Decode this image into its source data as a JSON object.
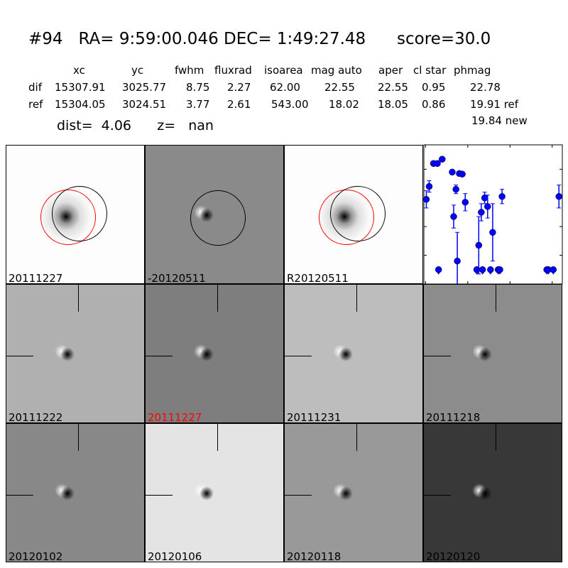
{
  "title": "#94   RA= 9:59:00.046 DEC= 1:49:27.48      score=30.0",
  "table": {
    "headers": [
      "xc",
      "yc",
      "fwhm",
      "fluxrad",
      "isoarea",
      "mag auto",
      "aper",
      "cl star",
      "phmag"
    ],
    "rows": [
      {
        "label": "dif",
        "values": [
          "15307.91",
          "3025.77",
          "8.75",
          "2.27",
          "62.00",
          "22.55",
          "22.55",
          "0.95",
          "22.78"
        ]
      },
      {
        "label": "ref",
        "values": [
          "15304.05",
          "3024.51",
          "3.77",
          "2.61",
          "543.00",
          "18.02",
          "18.05",
          "0.86",
          "19.91 ref"
        ]
      }
    ],
    "extra": "19.84 new"
  },
  "dist_text": "dist=  4.06      z=   nan",
  "stamps": [
    {
      "label": "20111227",
      "label_color": "#000000"
    },
    {
      "label": "-20120511",
      "label_color": "#000000"
    },
    {
      "label": "R20120511",
      "label_color": "#000000"
    },
    {
      "label": "20111218",
      "label_color": "#000000"
    },
    {
      "label": "20111222",
      "label_color": "#000000"
    },
    {
      "label": "20111227",
      "label_color": "#ff0000"
    },
    {
      "label": "20111231",
      "label_color": "#000000"
    },
    {
      "label": "20120102",
      "label_color": "#000000"
    },
    {
      "label": "20120106",
      "label_color": "#000000"
    },
    {
      "label": "20120118",
      "label_color": "#000000"
    },
    {
      "label": "20120120",
      "label_color": "#000000"
    }
  ],
  "chart_data": {
    "type": "scatter",
    "xlim": [
      -2,
      162
    ],
    "ylim": [
      26,
      21.15
    ],
    "y_inverted": true,
    "xticks": [
      0,
      50,
      100,
      150
    ],
    "yticks": [
      22,
      23,
      24,
      25,
      26
    ],
    "color": "#0000ff",
    "points": [
      {
        "x": 0.9,
        "y": 23.05,
        "err": 0.3
      },
      {
        "x": 4.3,
        "y": 22.6,
        "err": 0.2
      },
      {
        "x": 9.4,
        "y": 21.8,
        "err": 0.03
      },
      {
        "x": 14,
        "y": 21.8,
        "err": 0.03
      },
      {
        "x": 19.7,
        "y": 21.65,
        "err": 0.03
      },
      {
        "x": 31.6,
        "y": 22.1,
        "err": 0.05
      },
      {
        "x": 33.3,
        "y": 23.65,
        "err": 0.4
      },
      {
        "x": 36,
        "y": 22.7,
        "err": 0.15
      },
      {
        "x": 37.6,
        "y": 25.2,
        "err": 1.0
      },
      {
        "x": 40,
        "y": 22.15,
        "err": 0.05
      },
      {
        "x": 43.5,
        "y": 22.17,
        "err": 0.05
      },
      {
        "x": 47,
        "y": 23.15,
        "err": 0.3
      },
      {
        "x": 63,
        "y": 24.65,
        "err": 1.0
      },
      {
        "x": 66,
        "y": 23.5,
        "err": 0.3
      },
      {
        "x": 70,
        "y": 23.0,
        "err": 0.2
      },
      {
        "x": 73.5,
        "y": 23.3,
        "err": 0.4
      },
      {
        "x": 79.5,
        "y": 24.2,
        "err": 1.0
      },
      {
        "x": 90.6,
        "y": 22.95,
        "err": 0.25
      },
      {
        "x": 158,
        "y": 22.95,
        "err": 0.4
      }
    ],
    "upper_limits": [
      {
        "x": 15.4,
        "y": 25.5
      },
      {
        "x": 60.7,
        "y": 25.5
      },
      {
        "x": 67.5,
        "y": 25.5
      },
      {
        "x": 76.9,
        "y": 25.5
      },
      {
        "x": 86,
        "y": 25.5
      },
      {
        "x": 88,
        "y": 25.5
      },
      {
        "x": 143.6,
        "y": 25.5
      },
      {
        "x": 145.4,
        "y": 25.5
      },
      {
        "x": 151.3,
        "y": 25.5
      }
    ]
  }
}
